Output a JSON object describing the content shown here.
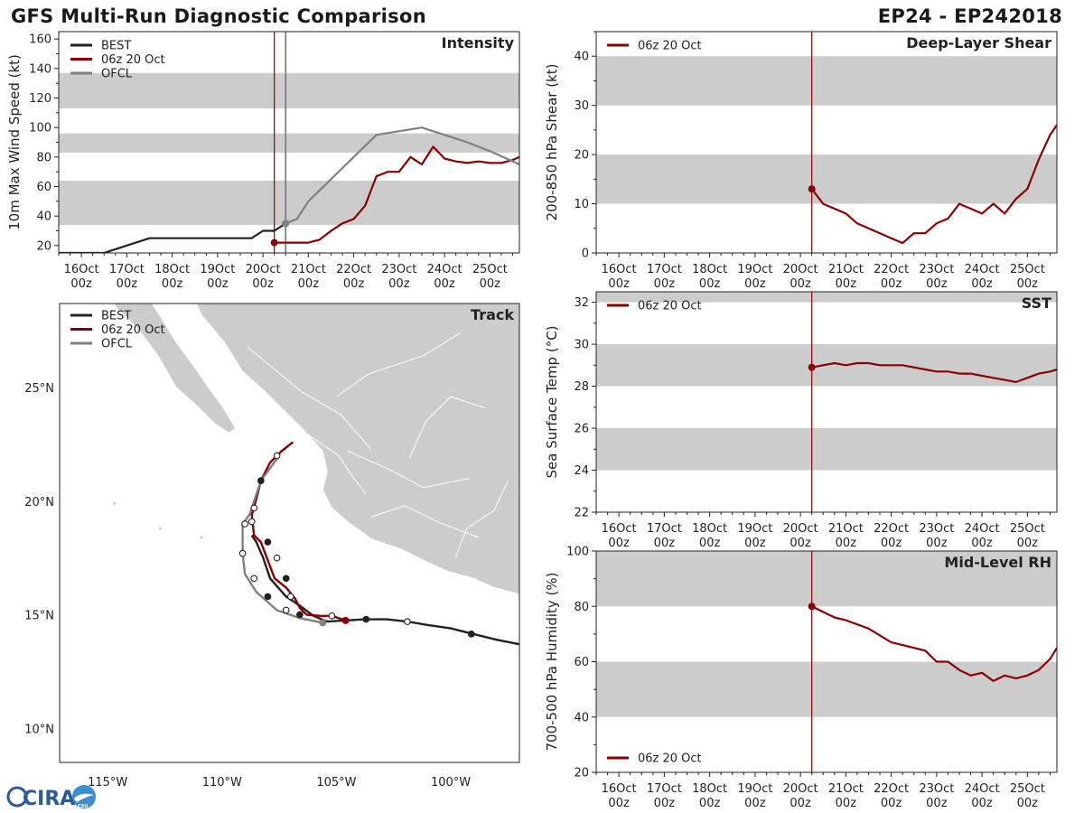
{
  "header": {
    "title": "GFS Multi-Run Diagnostic Comparison",
    "storm": "EP24 - EP242018"
  },
  "logo": {
    "text": "CIRA",
    "subtext": "CSU"
  },
  "colors": {
    "best": "#222222",
    "gfs": "#8b0000",
    "ofcl": "#808080",
    "band": "#cccccc",
    "land": "#cccccc"
  },
  "time_axis": {
    "start_day": 15.5,
    "end_day": 25.65,
    "ticks": [
      {
        "day": 16,
        "label1": "16Oct",
        "label2": "00z"
      },
      {
        "day": 17,
        "label1": "17Oct",
        "label2": "00z"
      },
      {
        "day": 18,
        "label1": "18Oct",
        "label2": "00z"
      },
      {
        "day": 19,
        "label1": "19Oct",
        "label2": "00z"
      },
      {
        "day": 20,
        "label1": "20Oct",
        "label2": "00z"
      },
      {
        "day": 21,
        "label1": "21Oct",
        "label2": "00z"
      },
      {
        "day": 22,
        "label1": "22Oct",
        "label2": "00z"
      },
      {
        "day": 23,
        "label1": "23Oct",
        "label2": "00z"
      },
      {
        "day": 24,
        "label1": "24Oct",
        "label2": "00z"
      },
      {
        "day": 25,
        "label1": "25Oct",
        "label2": "00z"
      }
    ],
    "init_day": 20.25,
    "ofcl_init_day": 20.5
  },
  "chart_data": [
    {
      "id": "intensity",
      "type": "line",
      "title": "Intensity",
      "ylabel": "10m Max Wind Speed (kt)",
      "ylim": [
        15,
        165
      ],
      "yticks": [
        20,
        40,
        60,
        80,
        100,
        120,
        140,
        160
      ],
      "bands": [
        [
          34,
          64
        ],
        [
          83,
          96
        ],
        [
          113,
          137
        ]
      ],
      "legend": [
        "BEST",
        "06z 20 Oct",
        "OFCL"
      ],
      "series": [
        {
          "name": "BEST",
          "x": [
            15.5,
            16.0,
            16.5,
            17.0,
            17.5,
            18.0,
            18.5,
            19.0,
            19.5,
            19.75,
            20.0,
            20.25,
            20.5
          ],
          "y": [
            15,
            15,
            15,
            20,
            25,
            25,
            25,
            25,
            25,
            25,
            30,
            30,
            35
          ]
        },
        {
          "name": "06z 20 Oct",
          "x": [
            20.25,
            20.5,
            20.75,
            21.0,
            21.25,
            21.5,
            21.75,
            22.0,
            22.25,
            22.5,
            22.75,
            23.0,
            23.25,
            23.5,
            23.75,
            24.0,
            24.25,
            24.5,
            24.75,
            25.0,
            25.25,
            25.5,
            25.65
          ],
          "y": [
            22,
            22,
            22,
            22,
            24,
            30,
            35,
            38,
            47,
            67,
            70,
            70,
            80,
            75,
            87,
            79,
            77,
            76,
            77,
            76,
            76,
            78,
            80
          ]
        },
        {
          "name": "OFCL",
          "x": [
            20.5,
            20.75,
            21.0,
            22.5,
            23.5,
            24.5,
            25.0,
            25.65
          ],
          "y": [
            35,
            38,
            50,
            95,
            100,
            90,
            84,
            75
          ]
        }
      ],
      "markers": [
        {
          "series": "06z 20 Oct",
          "x": 20.25,
          "y": 22
        },
        {
          "series": "OFCL",
          "x": 20.5,
          "y": 35
        }
      ]
    },
    {
      "id": "shear",
      "type": "line",
      "title": "Deep-Layer Shear",
      "ylabel": "200-850 hPa Shear (kt)",
      "ylim": [
        0,
        45
      ],
      "yticks": [
        0,
        10,
        20,
        30,
        40
      ],
      "bands": [
        [
          10,
          20
        ],
        [
          30,
          40
        ]
      ],
      "legend": [
        "06z 20 Oct"
      ],
      "series": [
        {
          "name": "06z 20 Oct",
          "x": [
            20.25,
            20.5,
            20.75,
            21.0,
            21.25,
            21.5,
            21.75,
            22.0,
            22.25,
            22.5,
            22.75,
            23.0,
            23.25,
            23.5,
            23.75,
            24.0,
            24.25,
            24.5,
            24.75,
            25.0,
            25.25,
            25.5,
            25.65
          ],
          "y": [
            13,
            10,
            9,
            8,
            6,
            5,
            4,
            3,
            2,
            4,
            4,
            6,
            7,
            10,
            9,
            8,
            10,
            8,
            11,
            13,
            19,
            24,
            26
          ]
        }
      ],
      "markers": [
        {
          "series": "06z 20 Oct",
          "x": 20.25,
          "y": 13
        }
      ]
    },
    {
      "id": "sst",
      "type": "line",
      "title": "SST",
      "ylabel": "Sea Surface Temp (°C)",
      "ylim": [
        22,
        32.5
      ],
      "yticks": [
        22,
        24,
        26,
        28,
        30,
        32
      ],
      "bands": [
        [
          24,
          26
        ],
        [
          28,
          30
        ],
        [
          32,
          32.5
        ]
      ],
      "legend": [
        "06z 20 Oct"
      ],
      "series": [
        {
          "name": "06z 20 Oct",
          "x": [
            20.25,
            20.5,
            20.75,
            21.0,
            21.25,
            21.5,
            21.75,
            22.0,
            22.25,
            22.5,
            22.75,
            23.0,
            23.25,
            23.5,
            23.75,
            24.0,
            24.25,
            24.5,
            24.75,
            25.0,
            25.25,
            25.5,
            25.65
          ],
          "y": [
            28.9,
            29.0,
            29.1,
            29.0,
            29.1,
            29.1,
            29.0,
            29.0,
            29.0,
            28.9,
            28.8,
            28.7,
            28.7,
            28.6,
            28.6,
            28.5,
            28.4,
            28.3,
            28.2,
            28.4,
            28.6,
            28.7,
            28.8
          ]
        }
      ],
      "markers": [
        {
          "series": "06z 20 Oct",
          "x": 20.25,
          "y": 28.9
        }
      ]
    },
    {
      "id": "rh",
      "type": "line",
      "title": "Mid-Level RH",
      "ylabel": "700-500 hPa Humidity (%)",
      "ylim": [
        20,
        100
      ],
      "yticks": [
        20,
        40,
        60,
        80,
        100
      ],
      "bands": [
        [
          40,
          60
        ],
        [
          80,
          100
        ]
      ],
      "legend": [
        "06z 20 Oct"
      ],
      "series": [
        {
          "name": "06z 20 Oct",
          "x": [
            20.25,
            20.5,
            20.75,
            21.0,
            21.5,
            22.0,
            22.25,
            22.5,
            22.75,
            23.0,
            23.25,
            23.5,
            23.75,
            24.0,
            24.25,
            24.5,
            24.75,
            25.0,
            25.25,
            25.5,
            25.65
          ],
          "y": [
            80,
            78,
            76,
            75,
            72,
            67,
            66,
            65,
            64,
            60,
            60,
            57,
            55,
            56,
            53,
            55,
            54,
            55,
            57,
            61,
            65
          ]
        }
      ],
      "markers": [
        {
          "series": "06z 20 Oct",
          "x": 20.25,
          "y": 80
        }
      ]
    },
    {
      "id": "track",
      "type": "map",
      "title": "Track",
      "lon_range": [
        -117.1,
        -97.0
      ],
      "lat_range": [
        8.5,
        28.7
      ],
      "lon_ticks": [
        {
          "v": -115,
          "label": "115°W"
        },
        {
          "v": -110,
          "label": "110°W"
        },
        {
          "v": -105,
          "label": "105°W"
        },
        {
          "v": -100,
          "label": "100°W"
        }
      ],
      "lat_ticks": [
        {
          "v": 10,
          "label": "10°N"
        },
        {
          "v": 15,
          "label": "15°N"
        },
        {
          "v": 20,
          "label": "20°N"
        },
        {
          "v": 25,
          "label": "25°N"
        }
      ],
      "legend": [
        "BEST",
        "06z 20 Oct",
        "OFCL"
      ],
      "series": [
        {
          "name": "BEST",
          "lon": [
            -97.0,
            -98.0,
            -99.0,
            -100.0,
            -101.0,
            -101.9,
            -102.8,
            -103.7,
            -104.6,
            -105.4,
            -106.0,
            -106.6,
            -107.2,
            -107.9,
            -108.2,
            -108.5,
            -108.7
          ],
          "lat": [
            13.7,
            13.9,
            14.15,
            14.4,
            14.55,
            14.7,
            14.8,
            14.8,
            14.75,
            14.7,
            14.95,
            15.4,
            15.8,
            16.6,
            17.5,
            18.2,
            18.5
          ]
        },
        {
          "name": "06z 20 Oct",
          "lon": [
            -104.6,
            -105.2,
            -105.7,
            -106.3,
            -106.6,
            -106.8,
            -107.2,
            -107.7,
            -108.0,
            -108.3,
            -108.6,
            -108.7,
            -108.6,
            -108.3,
            -107.9,
            -107.4,
            -106.9
          ],
          "lat": [
            14.75,
            14.95,
            14.95,
            15.0,
            15.3,
            15.7,
            16.2,
            16.6,
            17.4,
            18.2,
            18.5,
            19.4,
            19.7,
            20.9,
            21.7,
            22.2,
            22.6
          ]
        },
        {
          "name": "OFCL",
          "lon": [
            -105.6,
            -106.6,
            -107.6,
            -108.5,
            -109.0,
            -109.1,
            -109.1,
            -108.8,
            -108.3,
            -107.5
          ],
          "lat": [
            14.65,
            14.85,
            15.2,
            16.0,
            16.8,
            17.7,
            19.0,
            19.4,
            20.9,
            22.0
          ]
        }
      ],
      "best_markers": [
        {
          "lon": -99.1,
          "lat": 14.15,
          "fill": "closed"
        },
        {
          "lon": -101.9,
          "lat": 14.7,
          "fill": "open"
        },
        {
          "lon": -103.7,
          "lat": 14.8,
          "fill": "closed"
        },
        {
          "lon": -106.6,
          "lat": 15.0,
          "fill": "closed"
        },
        {
          "lon": -107.0,
          "lat": 15.8,
          "fill": "open"
        },
        {
          "lon": -107.2,
          "lat": 16.6,
          "fill": "closed"
        },
        {
          "lon": -107.6,
          "lat": 17.5,
          "fill": "open"
        },
        {
          "lon": -108.0,
          "lat": 18.2,
          "fill": "closed"
        },
        {
          "lon": -108.7,
          "lat": 19.1,
          "fill": "open"
        },
        {
          "lon": -108.6,
          "lat": 19.7,
          "fill": "open"
        },
        {
          "lon": -108.3,
          "lat": 20.9,
          "fill": "closed"
        },
        {
          "lon": -107.6,
          "lat": 22.0,
          "fill": "open"
        }
      ],
      "ofcl_markers": [
        {
          "lon": -105.2,
          "lat": 14.95,
          "fill": "open"
        },
        {
          "lon": -107.2,
          "lat": 15.2,
          "fill": "open"
        },
        {
          "lon": -108.6,
          "lat": 16.6,
          "fill": "open"
        },
        {
          "lon": -109.1,
          "lat": 17.7,
          "fill": "open"
        },
        {
          "lon": -109.0,
          "lat": 19.0,
          "fill": "open"
        },
        {
          "lon": -108.0,
          "lat": 15.8,
          "fill": "closed"
        }
      ],
      "current_position": {
        "lon": -104.6,
        "lat": 14.75
      },
      "ofcl_current": {
        "lon": -105.6,
        "lat": 14.65
      }
    }
  ]
}
